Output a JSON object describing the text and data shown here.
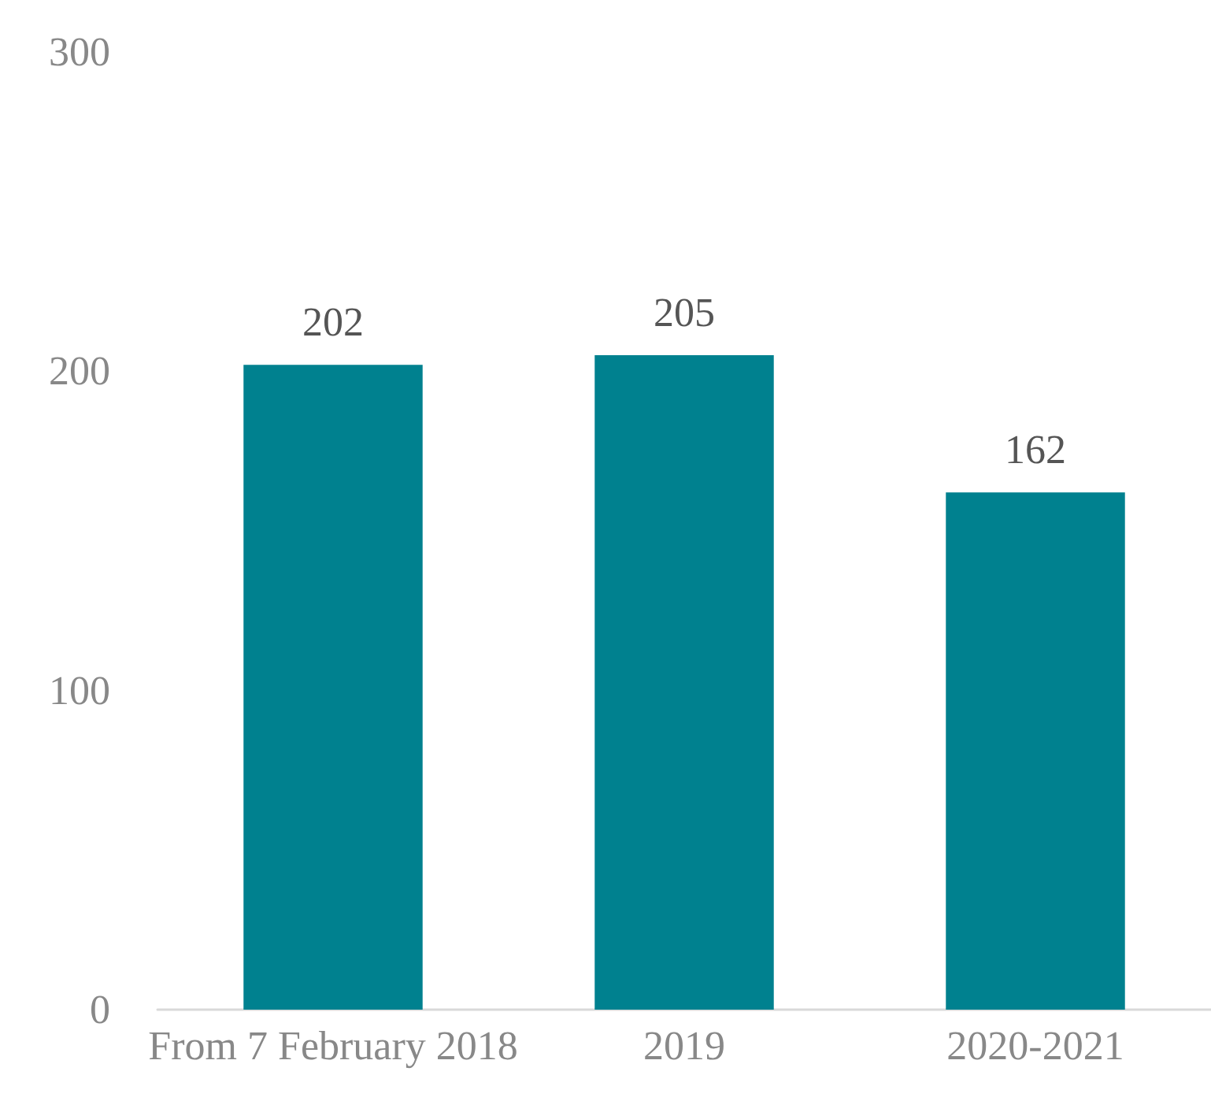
{
  "chart_data": {
    "type": "bar",
    "categories": [
      "From 7 February 2018",
      "2019",
      "2020-2021"
    ],
    "values": [
      202,
      205,
      162
    ],
    "color": "#00818f",
    "ylim": [
      0,
      300
    ],
    "yticks": [
      0,
      100,
      200,
      300
    ],
    "grid": false,
    "data_labels": true
  }
}
